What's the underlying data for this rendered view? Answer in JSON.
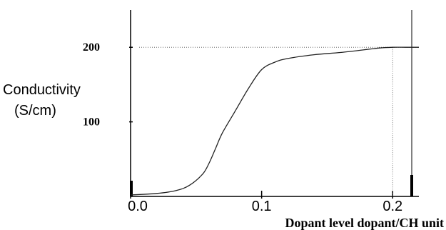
{
  "chart_data": {
    "type": "line",
    "xlabel": "Dopant level dopant/CH unit",
    "ylabel_line1": "Conductivity",
    "ylabel_line2": "(S/cm)",
    "x_ticks": [
      {
        "value": 0.0,
        "label": "0.0"
      },
      {
        "value": 0.1,
        "label": "0.1"
      },
      {
        "value": 0.2,
        "label": "0.2"
      }
    ],
    "y_ticks": [
      {
        "value": 100,
        "label": "100"
      },
      {
        "value": 200,
        "label": "200"
      }
    ],
    "xlim": [
      0,
      0.22
    ],
    "ylim": [
      0,
      250
    ],
    "grid": false,
    "series": [
      {
        "x": [
          0.0,
          0.02,
          0.035,
          0.045,
          0.055,
          0.06,
          0.065,
          0.07,
          0.08,
          0.09,
          0.1,
          0.11,
          0.12,
          0.14,
          0.16,
          0.18,
          0.19,
          0.2,
          0.21,
          0.22
        ],
        "y": [
          2,
          4,
          8,
          15,
          30,
          45,
          65,
          85,
          115,
          145,
          170,
          180,
          185,
          190,
          193,
          197,
          199,
          200,
          200,
          200
        ]
      }
    ],
    "reference_line": {
      "y": 200,
      "x": 0.2
    },
    "colors": {
      "axis": "#000000",
      "curve": "#222222",
      "guide": "#555555"
    }
  }
}
